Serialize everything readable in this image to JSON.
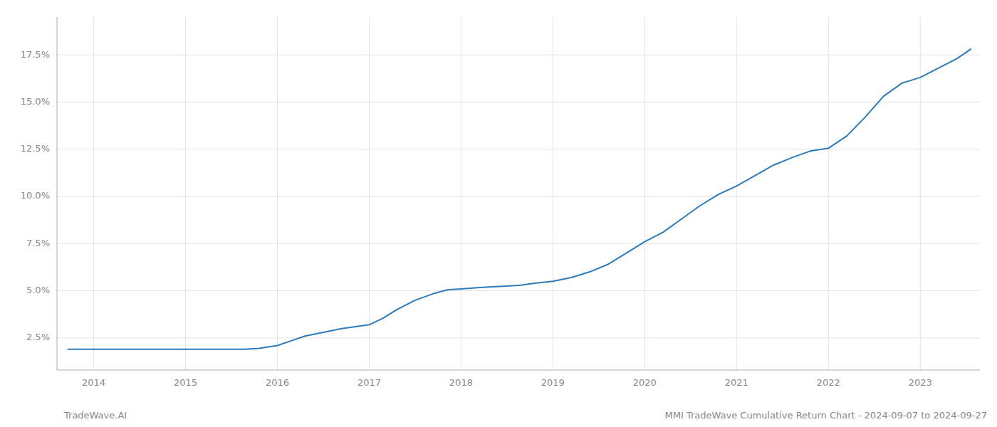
{
  "chart_data": {
    "type": "line",
    "title": "MMI TradeWave Cumulative Return Chart - 2024-09-07 to 2024-09-27",
    "annotations": [
      "TradeWave.AI"
    ],
    "color": "#2b7bba",
    "grid": true,
    "x": [
      2013.72,
      2013.85,
      2014.0,
      2014.2,
      2014.4,
      2014.6,
      2014.8,
      2015.0,
      2015.2,
      2015.4,
      2015.5,
      2015.65,
      2015.8,
      2016.0,
      2016.15,
      2016.3,
      2016.5,
      2016.7,
      2016.85,
      2017.0,
      2017.15,
      2017.3,
      2017.5,
      2017.7,
      2017.85,
      2018.0,
      2018.15,
      2018.3,
      2018.5,
      2018.65,
      2018.8,
      2019.0,
      2019.2,
      2019.4,
      2019.6,
      2019.8,
      2020.0,
      2020.2,
      2020.4,
      2020.6,
      2020.8,
      2021.0,
      2021.2,
      2021.4,
      2021.6,
      2021.8,
      2022.0,
      2022.2,
      2022.4,
      2022.6,
      2022.8,
      2023.0,
      2023.2,
      2023.4,
      2023.55
    ],
    "values": [
      1.9,
      1.9,
      1.9,
      1.9,
      1.9,
      1.9,
      1.9,
      1.9,
      1.9,
      1.9,
      1.9,
      1.9,
      1.95,
      2.1,
      2.35,
      2.6,
      2.8,
      3.0,
      3.1,
      3.2,
      3.55,
      4.0,
      4.5,
      4.85,
      5.05,
      5.1,
      5.15,
      5.2,
      5.25,
      5.3,
      5.4,
      5.5,
      5.7,
      6.0,
      6.4,
      7.0,
      7.6,
      8.1,
      8.8,
      9.5,
      10.1,
      10.55,
      11.1,
      11.65,
      12.05,
      12.4,
      12.55,
      13.2,
      14.2,
      15.3,
      16.0,
      16.3,
      16.8,
      17.3,
      17.8
    ],
    "xlim": [
      2013.6,
      2023.65
    ],
    "ylim": [
      0.8,
      19.5
    ],
    "xticks": [
      2014,
      2015,
      2016,
      2017,
      2018,
      2019,
      2020,
      2021,
      2022,
      2023
    ],
    "yticks": [
      {
        "value": 2.5,
        "label": "2.5%"
      },
      {
        "value": 5.0,
        "label": "5.0%"
      },
      {
        "value": 7.5,
        "label": "7.5%"
      },
      {
        "value": 10.0,
        "label": "10.0%"
      },
      {
        "value": 12.5,
        "label": "12.5%"
      },
      {
        "value": 15.0,
        "label": "15.0%"
      },
      {
        "value": 17.5,
        "label": "17.5%"
      }
    ]
  }
}
